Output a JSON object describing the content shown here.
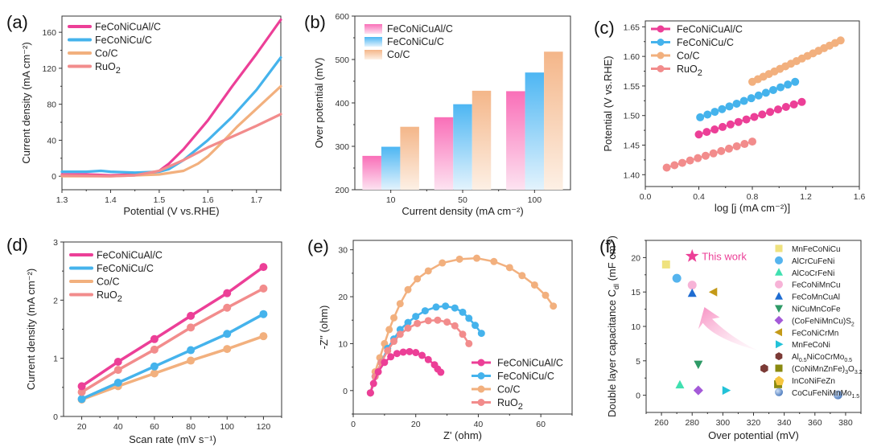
{
  "chart_data": [
    {
      "id": "a",
      "panel_label": "(a)",
      "type": "line",
      "title": "",
      "xlabel": "Potential (V vs.RHE)",
      "ylabel": "Current density (mA cm⁻²)",
      "xlim": [
        1.3,
        1.75
      ],
      "ylim": [
        -15,
        178
      ],
      "xticks": [
        1.3,
        1.4,
        1.5,
        1.6,
        1.7
      ],
      "yticks": [
        0,
        40,
        80,
        120,
        160
      ],
      "legend_position": "top-left",
      "series": [
        {
          "name": "FeCoNiCuAl/C",
          "color": "#ec3f97",
          "x": [
            1.3,
            1.35,
            1.4,
            1.45,
            1.48,
            1.5,
            1.52,
            1.55,
            1.6,
            1.65,
            1.7,
            1.75
          ],
          "y": [
            2,
            2,
            1,
            2,
            3,
            6,
            14,
            30,
            62,
            100,
            136,
            174
          ]
        },
        {
          "name": "FeCoNiCu/C",
          "color": "#45b3ec",
          "x": [
            1.3,
            1.35,
            1.38,
            1.4,
            1.45,
            1.5,
            1.52,
            1.55,
            1.6,
            1.65,
            1.7,
            1.75
          ],
          "y": [
            5,
            5,
            6,
            5,
            4,
            5,
            8,
            18,
            40,
            66,
            96,
            132
          ]
        },
        {
          "name": "Co/C",
          "color": "#f2b07e",
          "x": [
            1.3,
            1.4,
            1.5,
            1.55,
            1.58,
            1.6,
            1.63,
            1.66,
            1.7,
            1.75
          ],
          "y": [
            0,
            0,
            2,
            6,
            14,
            22,
            38,
            55,
            75,
            100
          ]
        },
        {
          "name": "RuO₂",
          "color": "#f28c8c",
          "x": [
            1.3,
            1.4,
            1.45,
            1.5,
            1.55,
            1.6,
            1.65,
            1.7,
            1.75
          ],
          "y": [
            1,
            0,
            1,
            6,
            18,
            32,
            44,
            56,
            69
          ]
        }
      ]
    },
    {
      "id": "b",
      "panel_label": "(b)",
      "type": "bar",
      "title": "",
      "xlabel": "Current density (mA cm⁻²)",
      "ylabel": "Over potential (mV)",
      "categories": [
        "10",
        "50",
        "100"
      ],
      "ylim": [
        200,
        600
      ],
      "yticks": [
        200,
        300,
        400,
        500,
        600
      ],
      "legend_position": "top-left",
      "series": [
        {
          "name": "FeCoNiCuAl/C",
          "color": "#f96fb8",
          "values": [
            278,
            367,
            427
          ]
        },
        {
          "name": "FeCoNiCu/C",
          "color": "#4db6f3",
          "values": [
            299,
            397,
            470
          ]
        },
        {
          "name": "Co/C",
          "color": "#f4b689",
          "values": [
            345,
            428,
            518
          ]
        }
      ]
    },
    {
      "id": "c",
      "panel_label": "(c)",
      "type": "scatter",
      "title": "",
      "xlabel": "log [j (mA cm⁻²)]",
      "ylabel": "Potential (V vs.RHE)",
      "xlim": [
        0.0,
        1.6
      ],
      "ylim": [
        1.38,
        1.66
      ],
      "xticks": [
        0.0,
        0.4,
        0.8,
        1.2,
        1.6
      ],
      "yticks": [
        1.4,
        1.45,
        1.5,
        1.55,
        1.6,
        1.65
      ],
      "legend_position": "top-left",
      "series": [
        {
          "name": "FeCoNiCuAl/C",
          "color": "#ec3f97",
          "x_start": 0.4,
          "x_end": 1.17,
          "y_start": 1.468,
          "y_end": 1.523,
          "n": 14
        },
        {
          "name": "FeCoNiCu/C",
          "color": "#45b3ec",
          "x_start": 0.41,
          "x_end": 1.12,
          "y_start": 1.497,
          "y_end": 1.557,
          "n": 14
        },
        {
          "name": "Co/C",
          "color": "#f2b07e",
          "x_start": 0.8,
          "x_end": 1.46,
          "y_start": 1.557,
          "y_end": 1.627,
          "n": 17
        },
        {
          "name": "RuO₂",
          "color": "#f28c8c",
          "x_start": 0.16,
          "x_end": 0.8,
          "y_start": 1.412,
          "y_end": 1.456,
          "n": 12
        }
      ]
    },
    {
      "id": "d",
      "panel_label": "(d)",
      "type": "line",
      "title": "",
      "xlabel": "Scan rate (mV s⁻¹)",
      "ylabel": "Current density (mA cm⁻²)",
      "x": [
        20,
        40,
        60,
        80,
        100,
        120
      ],
      "xlim": [
        10,
        130
      ],
      "ylim": [
        0,
        3
      ],
      "xticks": [
        20,
        40,
        60,
        80,
        100,
        120
      ],
      "yticks": [
        0,
        1,
        2,
        3
      ],
      "legend_position": "top-left",
      "series": [
        {
          "name": "FeCoNiCuAl/C",
          "color": "#ec3f97",
          "values": [
            0.52,
            0.94,
            1.33,
            1.73,
            2.12,
            2.57
          ]
        },
        {
          "name": "FeCoNiCu/C",
          "color": "#45b3ec",
          "values": [
            0.3,
            0.58,
            0.86,
            1.14,
            1.42,
            1.76
          ]
        },
        {
          "name": "Co/C",
          "color": "#f2b07e",
          "values": [
            0.29,
            0.52,
            0.74,
            0.96,
            1.16,
            1.38
          ]
        },
        {
          "name": "RuO₂",
          "color": "#f28c8c",
          "values": [
            0.42,
            0.8,
            1.15,
            1.53,
            1.87,
            2.2
          ]
        }
      ]
    },
    {
      "id": "e",
      "panel_label": "(e)",
      "type": "scatter",
      "title": "",
      "xlabel": "Z' (ohm)",
      "ylabel": "-Z'' (ohm)",
      "xlim": [
        0,
        70
      ],
      "ylim": [
        -5,
        32
      ],
      "xticks": [
        0,
        20,
        40,
        60
      ],
      "yticks": [
        0,
        10,
        20,
        30
      ],
      "legend_position": "bottom-right",
      "series": [
        {
          "name": "FeCoNiCuAl/C",
          "color": "#ec3f97",
          "x": [
            5.5,
            6.5,
            8,
            10,
            12,
            14,
            16,
            18,
            20,
            22,
            24,
            26,
            27,
            28
          ],
          "y": [
            -0.5,
            1.5,
            4,
            6,
            7.2,
            7.9,
            8.2,
            8.3,
            8.1,
            7.5,
            6.6,
            5.5,
            4.6,
            3.9
          ]
        },
        {
          "name": "FeCoNiCu/C",
          "color": "#45b3ec",
          "x": [
            5.5,
            7,
            9,
            11,
            13,
            15,
            17.5,
            20,
            23,
            26.5,
            29.5,
            32.5,
            35,
            37,
            39,
            41
          ],
          "y": [
            -0.5,
            3,
            6,
            9,
            11,
            13,
            14.5,
            15.8,
            17,
            17.8,
            18,
            17.6,
            16.7,
            15.4,
            13.9,
            12.2
          ]
        },
        {
          "name": "Co/C",
          "color": "#f2b07e",
          "x": [
            5.5,
            7,
            8.5,
            10,
            11.5,
            13,
            15,
            17.5,
            20.5,
            24,
            28.5,
            34,
            39.5,
            45,
            50,
            54,
            58,
            61.5,
            64
          ],
          "y": [
            -0.5,
            4,
            7,
            10,
            13,
            15.5,
            18.5,
            21.5,
            23.8,
            25.5,
            27.2,
            28,
            28.2,
            27.5,
            26.2,
            24.5,
            22.5,
            20.3,
            18
          ]
        },
        {
          "name": "RuO₂",
          "color": "#f28c8c",
          "x": [
            5.5,
            7,
            9,
            11,
            13,
            15,
            17.5,
            20.5,
            24,
            27,
            30,
            32.5,
            35,
            37
          ],
          "y": [
            -0.5,
            3,
            6,
            8.5,
            10.5,
            12,
            13.3,
            14.3,
            14.9,
            15,
            14.6,
            13.8,
            12,
            10
          ]
        }
      ]
    },
    {
      "id": "f",
      "panel_label": "(f)",
      "type": "scatter",
      "title": "",
      "xlabel": "Over potential (mV)",
      "ylabel": "Double layer capacitance Cₑₗ (mF cm⁻²)",
      "ylabel_parts": {
        "pre": "Double layer capacitance C",
        "sub": "dl",
        "post": " (mF cm",
        "sup": "-2",
        "end": ")"
      },
      "xlim": [
        250,
        390
      ],
      "ylim": [
        -2.5,
        22.5
      ],
      "xticks": [
        260,
        280,
        300,
        320,
        340,
        360,
        380
      ],
      "yticks": [
        0,
        5,
        10,
        15,
        20
      ],
      "legend_position": "right",
      "annotation": {
        "text": "This work",
        "x": 280,
        "y": 20.2,
        "color": "#ec3f97",
        "marker": "star"
      },
      "points": [
        {
          "label": "MnFeCoNiCu",
          "sub": "",
          "x": 263,
          "y": 19.0,
          "marker": "square",
          "color": "#efe27e"
        },
        {
          "label": "AlCrCuFeNi",
          "sub": "",
          "x": 270,
          "y": 17.0,
          "marker": "circle",
          "color": "#55b4ee"
        },
        {
          "label": "AlCoCrFeNi",
          "sub": "",
          "x": 272,
          "y": 1.5,
          "marker": "triangle-up",
          "color": "#40e0b0"
        },
        {
          "label": "FeCoNiMnCu",
          "sub": "",
          "x": 280,
          "y": 16.0,
          "marker": "circle",
          "color": "#f7b3d7"
        },
        {
          "label": "FeCoMnCuAl",
          "sub": "",
          "x": 280,
          "y": 14.8,
          "marker": "triangle-up",
          "color": "#1e6cd1"
        },
        {
          "label": "NiCuMnCoFe",
          "sub": "",
          "x": 284,
          "y": 4.5,
          "marker": "triangle-down",
          "color": "#2e9a66"
        },
        {
          "label": "(CoFeNiMnCu)S",
          "sub": "2",
          "x": 284,
          "y": 0.7,
          "marker": "diamond",
          "color": "#a45ad8"
        },
        {
          "label": "FeCoNiCrMn",
          "sub": "",
          "x": 294,
          "y": 15.0,
          "marker": "triangle-left",
          "color": "#c49a18"
        },
        {
          "label": "MnFeCoNi",
          "sub": "",
          "x": 302,
          "y": 0.7,
          "marker": "triangle-right",
          "color": "#22c2d8"
        },
        {
          "label": "Al0.5NiCoCrMo0.5",
          "rich": [
            [
              "Al",
              ""
            ],
            [
              "0.5",
              "sub"
            ],
            [
              "NiCoCrMo",
              ""
            ],
            [
              "0.5",
              "sub"
            ]
          ],
          "x": 327,
          "y": 3.9,
          "marker": "hexagon",
          "color": "#7b3a36"
        },
        {
          "label": "(CoNiMnZnFe)3O3.2",
          "rich": [
            [
              "(CoNiMnZnFe)",
              ""
            ],
            [
              "3",
              "sub"
            ],
            [
              "O",
              ""
            ],
            [
              "3.2",
              "sub"
            ]
          ],
          "x": 336,
          "y": 1.6,
          "marker": "square",
          "color": "#8a8a10"
        },
        {
          "label": "InCoNiFeZn",
          "sub": "",
          "x": 337,
          "y": 2.0,
          "marker": "pentagon",
          "color": "#f6c640"
        },
        {
          "label": "CoCuFeNiMnMo1.5",
          "rich": [
            [
              "CoCuFeNiMnMo",
              ""
            ],
            [
              "1.5",
              "sub"
            ]
          ],
          "x": 375,
          "y": 0.05,
          "marker": "sphere",
          "color": "#5e8fcf"
        }
      ]
    }
  ]
}
